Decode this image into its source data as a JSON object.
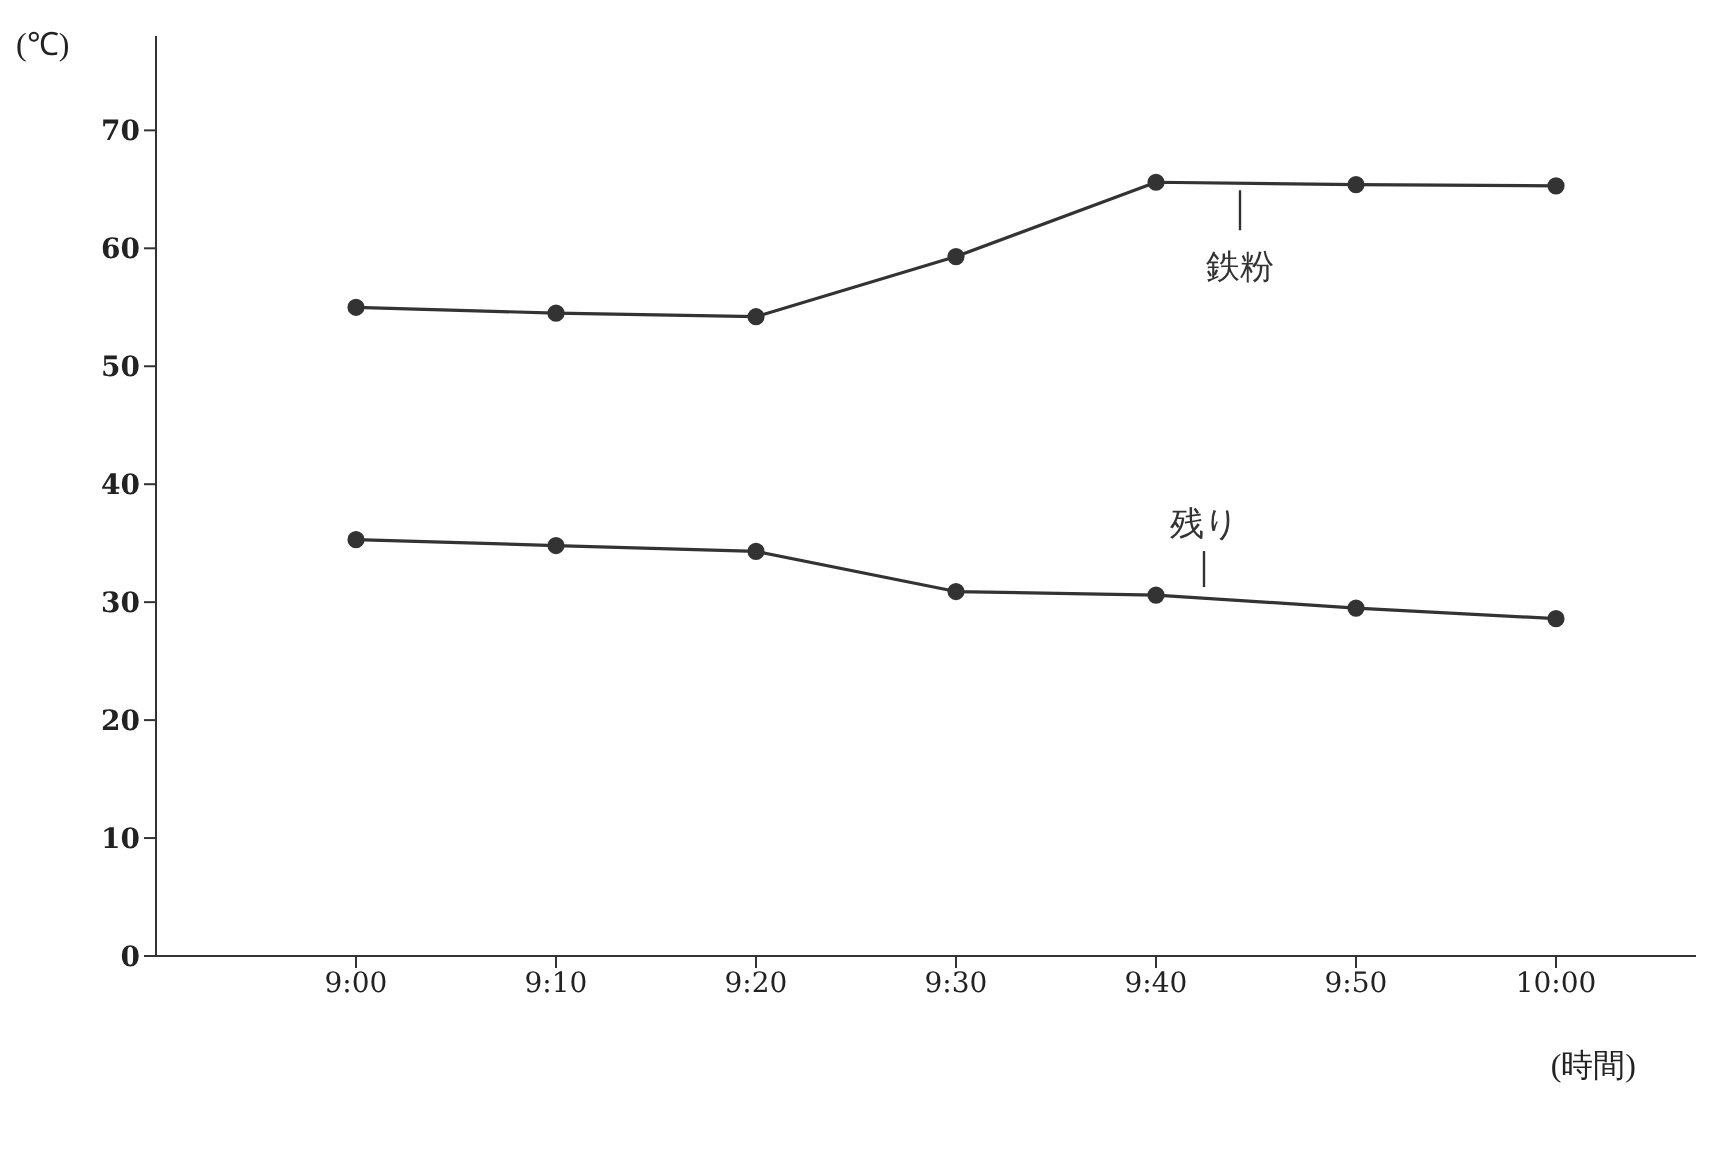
{
  "chart_data": {
    "type": "line",
    "ylabel": "(℃)",
    "xlabel": "(時間)",
    "categories": [
      "9:00",
      "9:10",
      "9:20",
      "9:30",
      "9:40",
      "9:50",
      "10:00"
    ],
    "series": [
      {
        "name": "鉄粉",
        "color": "#333333",
        "values": [
          55,
          54.5,
          54.2,
          59.3,
          65.6,
          65.4,
          65.3
        ]
      },
      {
        "name": "残り",
        "color": "#333333",
        "values": [
          35.3,
          34.8,
          34.3,
          30.9,
          30.6,
          29.5,
          28.6
        ]
      }
    ],
    "ylim": [
      0,
      78
    ],
    "yticks": [
      0,
      10,
      20,
      30,
      40,
      50,
      60,
      70
    ],
    "marker": "circle",
    "line_style": "solid"
  }
}
